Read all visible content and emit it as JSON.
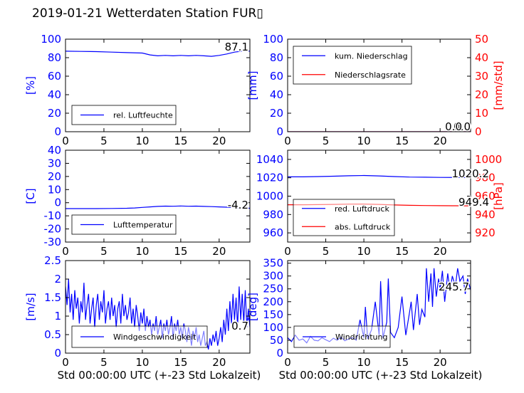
{
  "title": "2019-01-21 Wetterdaten Station FUR▯",
  "colors": {
    "left_axis": "#0000ff",
    "right_axis": "#ff0000",
    "frame": "#000000"
  },
  "chart_data": [
    {
      "id": "humidity",
      "type": "line",
      "ylabel": "[%]",
      "xlim": [
        0,
        24
      ],
      "ylim": [
        0,
        100
      ],
      "xticks": [
        0,
        5,
        10,
        15,
        20
      ],
      "yticks": [
        0,
        20,
        40,
        60,
        80,
        100
      ],
      "legend": "bottom-left",
      "current_label": "87.1",
      "series": [
        {
          "name": "rel. Luftfeuchte",
          "color": "#0000ff",
          "axis": "left",
          "x": [
            0,
            2,
            4,
            6,
            8,
            10,
            11,
            12,
            13,
            14,
            15,
            16,
            17,
            18,
            19,
            20,
            21,
            22,
            23,
            24
          ],
          "y": [
            87,
            86.8,
            86.5,
            86,
            85.5,
            85,
            83,
            82,
            82.5,
            82,
            82.5,
            82,
            82.5,
            82,
            81.5,
            82.5,
            84,
            86,
            87,
            87.1
          ]
        }
      ]
    },
    {
      "id": "precip",
      "type": "line",
      "ylabel": "[mm]",
      "ylabel_right": "[mm/std]",
      "xlim": [
        0,
        24
      ],
      "ylim": [
        0,
        100
      ],
      "ylim_right": [
        0,
        50
      ],
      "xticks": [
        0,
        5,
        10,
        15,
        20
      ],
      "yticks": [
        0,
        20,
        40,
        60,
        80,
        100
      ],
      "yticks_right": [
        0,
        10,
        20,
        30,
        40,
        50
      ],
      "legend": "top-left",
      "current_label": "0.0",
      "current_label_right": "0.0",
      "series": [
        {
          "name": "kum. Niederschlag",
          "color": "#0000ff",
          "axis": "left",
          "x": [
            0,
            24
          ],
          "y": [
            0,
            0
          ]
        },
        {
          "name": "Niederschlagsrate",
          "color": "#ff0000",
          "axis": "right",
          "x": [
            0,
            24
          ],
          "y": [
            0,
            0
          ]
        }
      ]
    },
    {
      "id": "temperature",
      "type": "line",
      "ylabel": "[C]",
      "xlim": [
        0,
        24
      ],
      "ylim": [
        -30,
        40
      ],
      "xticks": [
        0,
        5,
        10,
        15,
        20
      ],
      "yticks": [
        -30,
        -20,
        -10,
        0,
        10,
        20,
        30,
        40
      ],
      "legend": "bottom-left",
      "current_label": "-4.2",
      "series": [
        {
          "name": "Lufttemperatur",
          "color": "#0000ff",
          "axis": "left",
          "x": [
            0,
            2,
            4,
            6,
            8,
            9,
            10,
            11,
            12,
            13,
            14,
            15,
            16,
            17,
            18,
            19,
            20,
            21,
            22,
            23,
            24
          ],
          "y": [
            -4.5,
            -4.5,
            -4.5,
            -4.4,
            -4.2,
            -4,
            -3.6,
            -3.2,
            -2.8,
            -2.6,
            -2.7,
            -2.5,
            -2.7,
            -2.6,
            -2.8,
            -3,
            -3.2,
            -3.4,
            -3.7,
            -4,
            -4.2
          ]
        }
      ]
    },
    {
      "id": "pressure",
      "type": "line",
      "ylabel_right": "[hPa]",
      "xlim": [
        0,
        24
      ],
      "ylim": [
        950,
        1050
      ],
      "ylim_right": [
        910,
        1010
      ],
      "xticks": [
        0,
        5,
        10,
        15,
        20
      ],
      "yticks": [
        960,
        980,
        1000,
        1020,
        1040
      ],
      "yticks_right": [
        920,
        940,
        960,
        980,
        1000
      ],
      "legend": "bottom-left",
      "current_label": "1020.2",
      "current_label_right": "949.4",
      "series": [
        {
          "name": "red. Luftdruck",
          "color": "#0000ff",
          "axis": "left",
          "x": [
            0,
            2,
            4,
            6,
            8,
            10,
            12,
            14,
            16,
            18,
            20,
            22,
            24
          ],
          "y": [
            1021,
            1021,
            1021.3,
            1021.7,
            1022.2,
            1022.5,
            1022,
            1021.3,
            1020.8,
            1020.6,
            1020.4,
            1020.3,
            1020.2
          ]
        },
        {
          "name": "abs. Luftdruck",
          "color": "#ff0000",
          "axis": "right",
          "x": [
            0,
            2,
            4,
            6,
            8,
            10,
            12,
            14,
            16,
            18,
            20,
            22,
            24
          ],
          "y": [
            950.6,
            950.6,
            950.8,
            951,
            951.3,
            951.4,
            951,
            950.4,
            950,
            949.8,
            949.6,
            949.5,
            949.4
          ]
        }
      ]
    },
    {
      "id": "windspeed",
      "type": "line",
      "ylabel": "[m/s]",
      "xlim": [
        0,
        24
      ],
      "ylim": [
        0,
        2.5
      ],
      "xticks": [
        0,
        5,
        10,
        15,
        20
      ],
      "yticks": [
        0,
        0.5,
        1,
        1.5,
        2,
        2.5
      ],
      "xlabel": "Std 00:00:00 UTC (+-23 Std Lokalzeit)",
      "legend": "bottom-left",
      "current_label": "0.7",
      "series": [
        {
          "name": "Windgeschwindigkeit",
          "color": "#0000ff",
          "axis": "left",
          "x": [
            0,
            0.2,
            0.4,
            0.6,
            0.8,
            1,
            1.2,
            1.4,
            1.6,
            1.8,
            2,
            2.2,
            2.4,
            2.6,
            2.8,
            3,
            3.2,
            3.4,
            3.6,
            3.8,
            4,
            4.2,
            4.4,
            4.6,
            4.8,
            5,
            5.2,
            5.4,
            5.6,
            5.8,
            6,
            6.2,
            6.4,
            6.6,
            6.8,
            7,
            7.2,
            7.4,
            7.6,
            7.8,
            8,
            8.2,
            8.4,
            8.6,
            8.8,
            9,
            9.2,
            9.4,
            9.6,
            9.8,
            10,
            10.2,
            10.4,
            10.6,
            10.8,
            11,
            11.2,
            11.4,
            11.6,
            11.8,
            12,
            12.2,
            12.4,
            12.6,
            12.8,
            13,
            13.2,
            13.4,
            13.6,
            13.8,
            14,
            14.2,
            14.4,
            14.6,
            14.8,
            15,
            15.2,
            15.4,
            15.6,
            15.8,
            16,
            16.2,
            16.4,
            16.6,
            16.8,
            17,
            17.2,
            17.4,
            17.6,
            17.8,
            18,
            18.2,
            18.4,
            18.6,
            18.8,
            19,
            19.2,
            19.4,
            19.6,
            19.8,
            20,
            20.2,
            20.4,
            20.6,
            20.8,
            21,
            21.2,
            21.4,
            21.6,
            21.8,
            22,
            22.2,
            22.4,
            22.6,
            22.8,
            23,
            23.2,
            23.4,
            23.6,
            23.8,
            24
          ],
          "y": [
            1.8,
            1.3,
            2,
            1.1,
            1.6,
            0.9,
            1.7,
            1.2,
            1.5,
            0.8,
            1.4,
            1.1,
            1.9,
            0.9,
            1.3,
            1.6,
            0.8,
            1.2,
            1.5,
            0.7,
            1.3,
            1.6,
            0.9,
            1.4,
            1.1,
            1.7,
            0.8,
            1.2,
            1.4,
            0.9,
            1.5,
            1,
            1.3,
            0.7,
            1.2,
            1.4,
            0.8,
            1.6,
            1,
            1.3,
            0.9,
            1.1,
            1.5,
            0.8,
            1.2,
            0.7,
            1.3,
            1,
            0.6,
            1.1,
            0.8,
            1.2,
            0.6,
            1,
            0.7,
            0.9,
            0.5,
            0.8,
            0.6,
            1,
            0.5,
            0.7,
            0.9,
            0.4,
            0.8,
            0.6,
            0.9,
            0.5,
            0.7,
            1,
            0.4,
            0.8,
            0.6,
            0.9,
            0.5,
            0.7,
            0.4,
            0.8,
            0.6,
            0.3,
            0.7,
            0.5,
            0.2,
            0.6,
            0.4,
            0.7,
            0.3,
            0.5,
            0.2,
            0.4,
            0.6,
            0.2,
            0.3,
            0.1,
            0.4,
            0.2,
            0.5,
            0.3,
            0.6,
            0.2,
            0.4,
            0.7,
            0.3,
            0.9,
            0.5,
            1.2,
            0.6,
            1.4,
            0.8,
            1.6,
            0.9,
            1.5,
            0.7,
            1.8,
            0.9,
            1.6,
            0.8,
            1.7,
            0.7,
            1.2,
            0.7
          ]
        }
      ]
    },
    {
      "id": "winddir",
      "type": "line",
      "ylabel": "[deg]",
      "xlim": [
        0,
        24
      ],
      "ylim": [
        0,
        360
      ],
      "xticks": [
        0,
        5,
        10,
        15,
        20
      ],
      "yticks": [
        0,
        50,
        100,
        150,
        200,
        250,
        300,
        350
      ],
      "xlabel": "Std 00:00:00 UTC (+-23 Std Lokalzeit)",
      "legend": "bottom-left",
      "current_label": "245.7",
      "series": [
        {
          "name": "Windrichtung",
          "color": "#0000ff",
          "axis": "left",
          "x": [
            0,
            0.5,
            1,
            1.5,
            2,
            2.5,
            3,
            3.5,
            4,
            4.5,
            5,
            5.5,
            6,
            6.5,
            7,
            7.5,
            8,
            8.5,
            9,
            9.5,
            10,
            10.2,
            10.5,
            11,
            11.5,
            12,
            12.2,
            12.5,
            13,
            13.2,
            13.5,
            14,
            14.5,
            15,
            15.5,
            16,
            16.2,
            16.5,
            17,
            17.3,
            17.6,
            18,
            18.2,
            18.5,
            18.8,
            19,
            19.2,
            19.5,
            19.8,
            20,
            20.3,
            20.6,
            21,
            21.3,
            21.6,
            22,
            22.3,
            22.6,
            23,
            23.3,
            23.6,
            24
          ],
          "y": [
            60,
            45,
            70,
            50,
            55,
            40,
            65,
            50,
            48,
            60,
            52,
            45,
            58,
            50,
            62,
            48,
            55,
            60,
            50,
            130,
            60,
            180,
            55,
            90,
            200,
            70,
            280,
            60,
            120,
            290,
            80,
            60,
            100,
            220,
            70,
            160,
            200,
            90,
            230,
            110,
            170,
            140,
            330,
            200,
            310,
            180,
            330,
            220,
            290,
            250,
            320,
            200,
            310,
            240,
            300,
            260,
            330,
            280,
            300,
            230,
            290,
            245.7
          ]
        }
      ]
    }
  ]
}
